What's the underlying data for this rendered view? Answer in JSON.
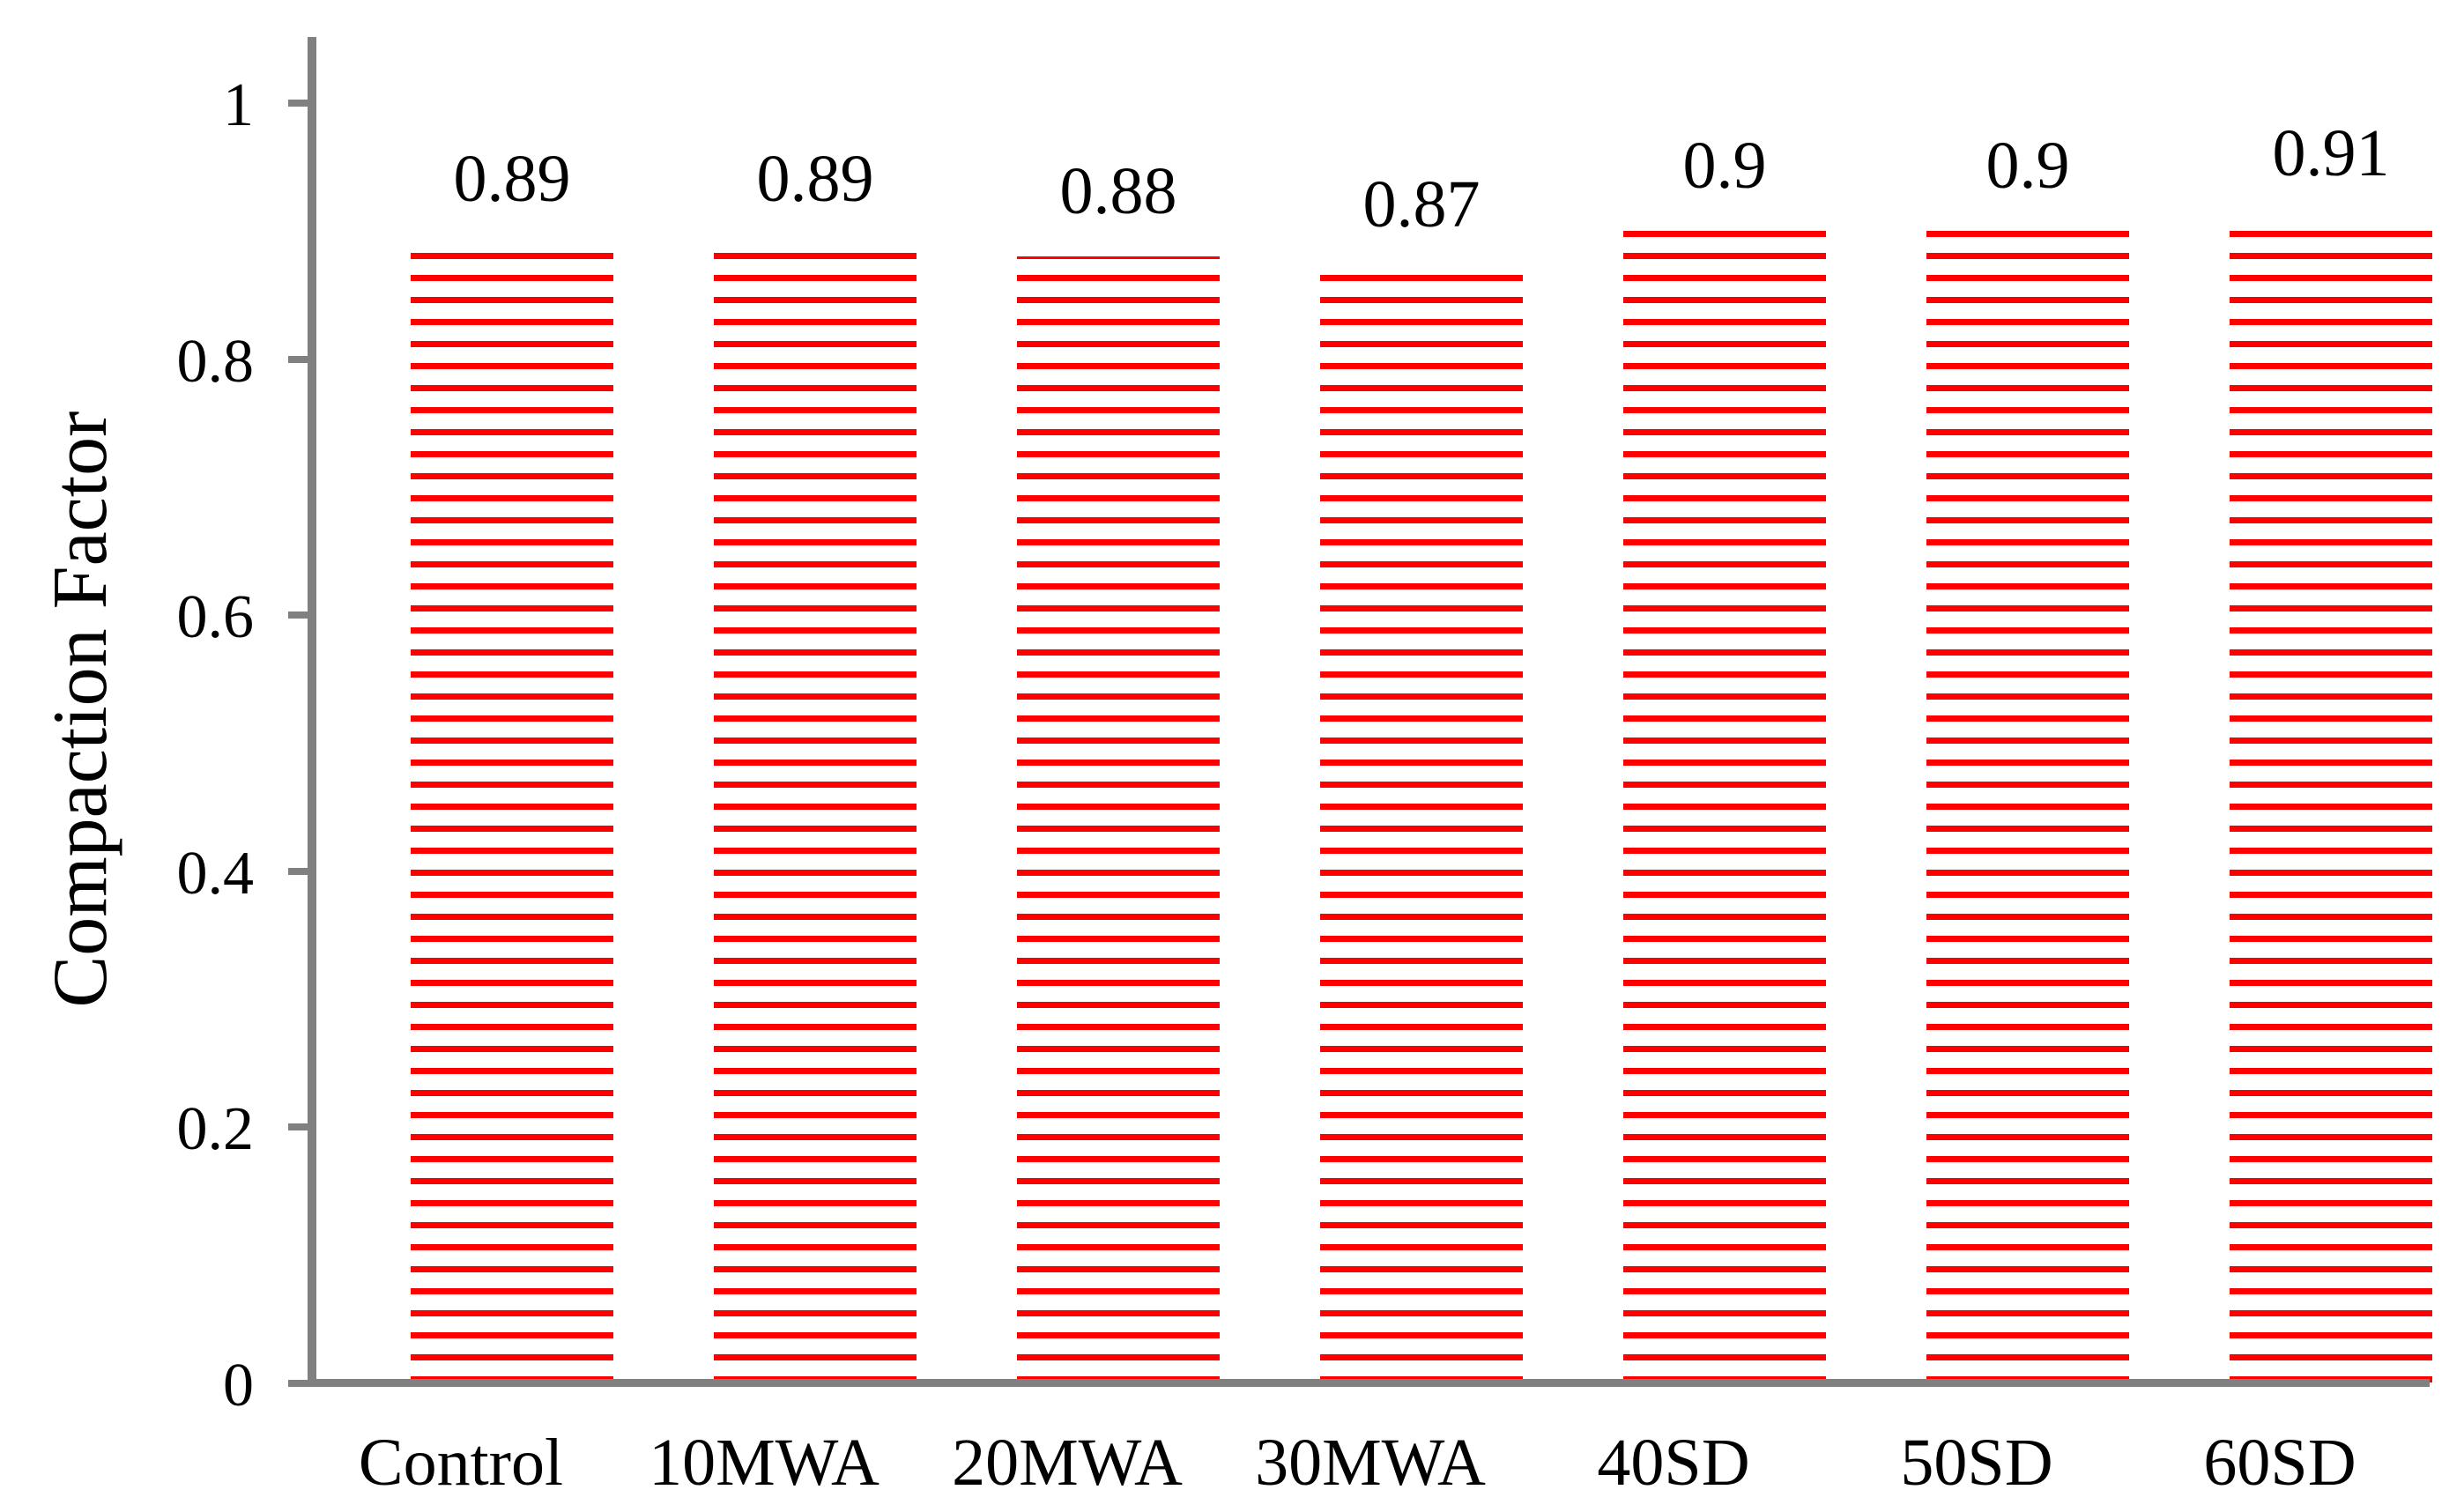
{
  "chart_data": {
    "type": "bar",
    "title": "",
    "xlabel": "",
    "ylabel": "Compaction Factor",
    "categories": [
      "Control",
      "10MWA",
      "20MWA",
      "30MWA",
      "40SD",
      "50SD",
      "60SD"
    ],
    "values": [
      0.89,
      0.89,
      0.88,
      0.87,
      0.9,
      0.9,
      0.91
    ],
    "data_labels": [
      "0.89",
      "0.89",
      "0.88",
      "0.87",
      "0.9",
      "0.9",
      "0.91"
    ],
    "ylim": [
      0,
      1
    ],
    "yticks": [
      1,
      0.8,
      0.6,
      0.4,
      0.2,
      0
    ],
    "ytick_labels": [
      "1",
      "0.8",
      "0.6",
      "0.4",
      "0.2",
      "0"
    ],
    "grid": "off",
    "legend": "none",
    "bar_pattern": "horizontal-stripes",
    "bar_color": "#FF0000",
    "axis_color": "#808080",
    "text_color": "#000000",
    "background_color": "#FFFFFF"
  }
}
